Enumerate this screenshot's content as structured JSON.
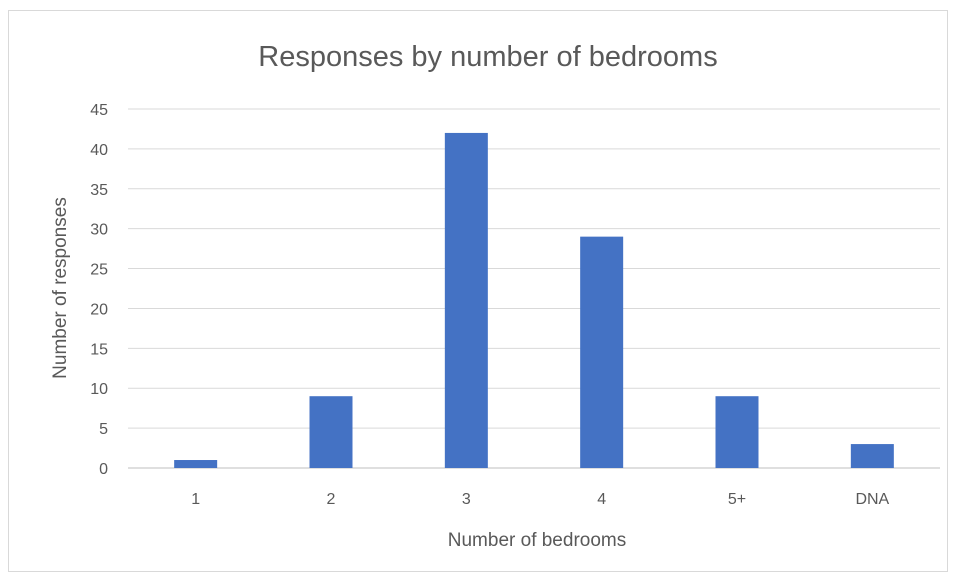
{
  "chart_data": {
    "type": "bar",
    "title": "Responses by number of bedrooms",
    "xlabel": "Number of bedrooms",
    "ylabel": "Number of responses",
    "categories": [
      "1",
      "2",
      "3",
      "4",
      "5+",
      "DNA"
    ],
    "values": [
      1,
      9,
      42,
      29,
      9,
      3
    ],
    "ylim": [
      0,
      45
    ],
    "yticks": [
      0,
      5,
      10,
      15,
      20,
      25,
      30,
      35,
      40,
      45
    ],
    "grid": "horizontal",
    "legend": "none",
    "bar_color": "#4472c4"
  }
}
